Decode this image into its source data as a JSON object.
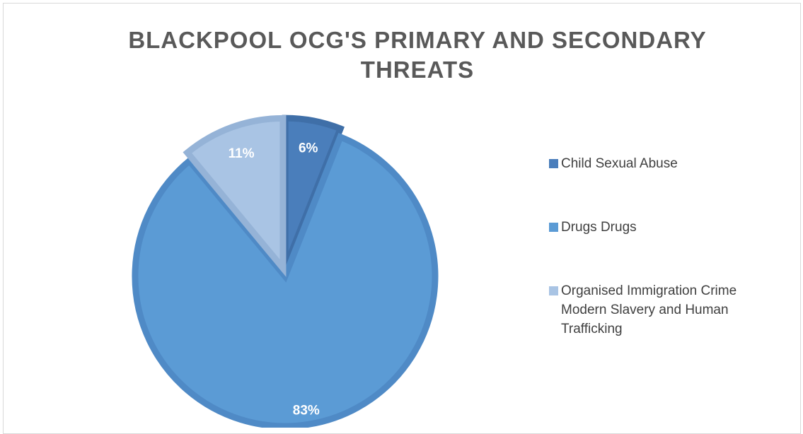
{
  "chart_data": {
    "type": "pie",
    "title": "BLACKPOOL OCG'S PRIMARY AND SECONDARY THREATS",
    "categories": [
      "Child Sexual Abuse",
      "Drugs Drugs",
      "Organised Immigration Crime Modern Slavery and Human Trafficking"
    ],
    "values": [
      6,
      83,
      11
    ],
    "value_labels": [
      "6%",
      "83%",
      "11%"
    ],
    "colors": [
      "#4a7ebb",
      "#5b9bd5",
      "#a9c4e4"
    ],
    "edge_colors": [
      "#3f6fa8",
      "#4f8ac6",
      "#95b3d7"
    ],
    "legend_position": "right"
  }
}
